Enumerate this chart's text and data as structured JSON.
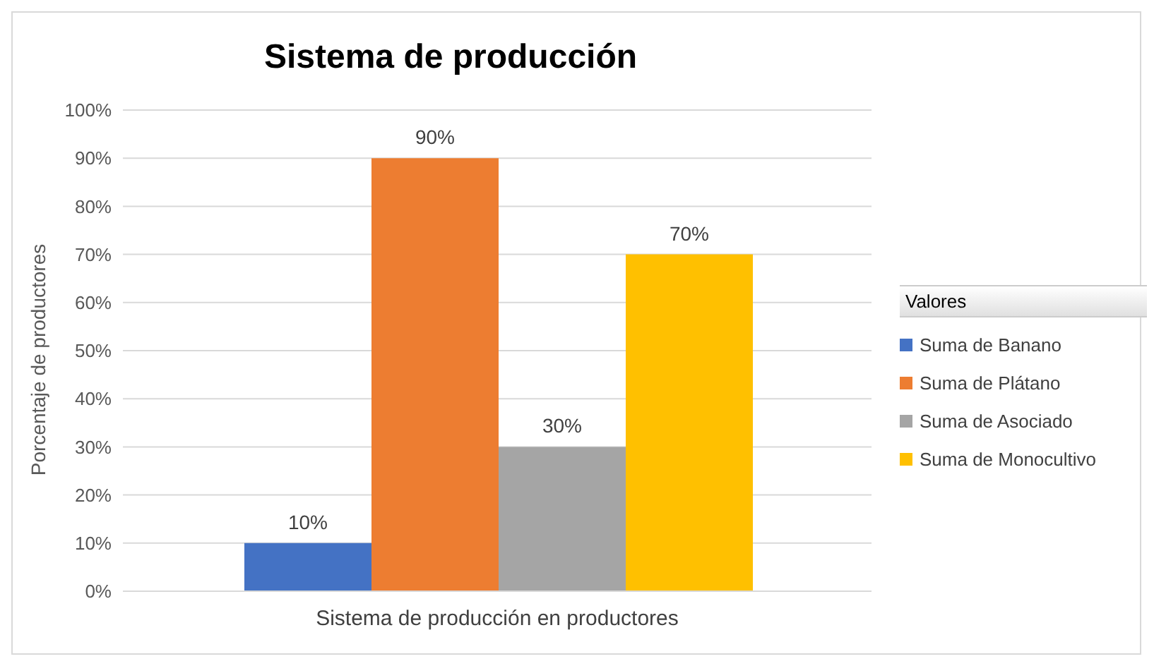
{
  "chart_data": {
    "type": "bar",
    "title": "Sistema de producción",
    "xlabel": "Sistema de producción en productores",
    "ylabel": "Porcentaje de productores",
    "legend_title": "Valores",
    "categories": [
      null
    ],
    "series": [
      {
        "name": "Suma de Banano",
        "color": "#4472c4",
        "values": [
          10
        ],
        "value_labels": [
          "10%"
        ]
      },
      {
        "name": "Suma de Plátano",
        "color": "#ed7d31",
        "values": [
          90
        ],
        "value_labels": [
          "90%"
        ]
      },
      {
        "name": "Suma de Asociado",
        "color": "#a5a5a5",
        "values": [
          30
        ],
        "value_labels": [
          "30%"
        ]
      },
      {
        "name": "Suma de Monocultivo",
        "color": "#ffc000",
        "values": [
          70
        ],
        "value_labels": [
          "70%"
        ]
      }
    ],
    "ylim": [
      0,
      100
    ],
    "yticks": [
      {
        "value": 0,
        "label": "0%"
      },
      {
        "value": 10,
        "label": "10%"
      },
      {
        "value": 20,
        "label": "20%"
      },
      {
        "value": 30,
        "label": "30%"
      },
      {
        "value": 40,
        "label": "40%"
      },
      {
        "value": 50,
        "label": "50%"
      },
      {
        "value": 60,
        "label": "60%"
      },
      {
        "value": 70,
        "label": "70%"
      },
      {
        "value": 80,
        "label": "80%"
      },
      {
        "value": 90,
        "label": "90%"
      },
      {
        "value": 100,
        "label": "100%"
      }
    ],
    "grid": "y",
    "legend": "right"
  }
}
